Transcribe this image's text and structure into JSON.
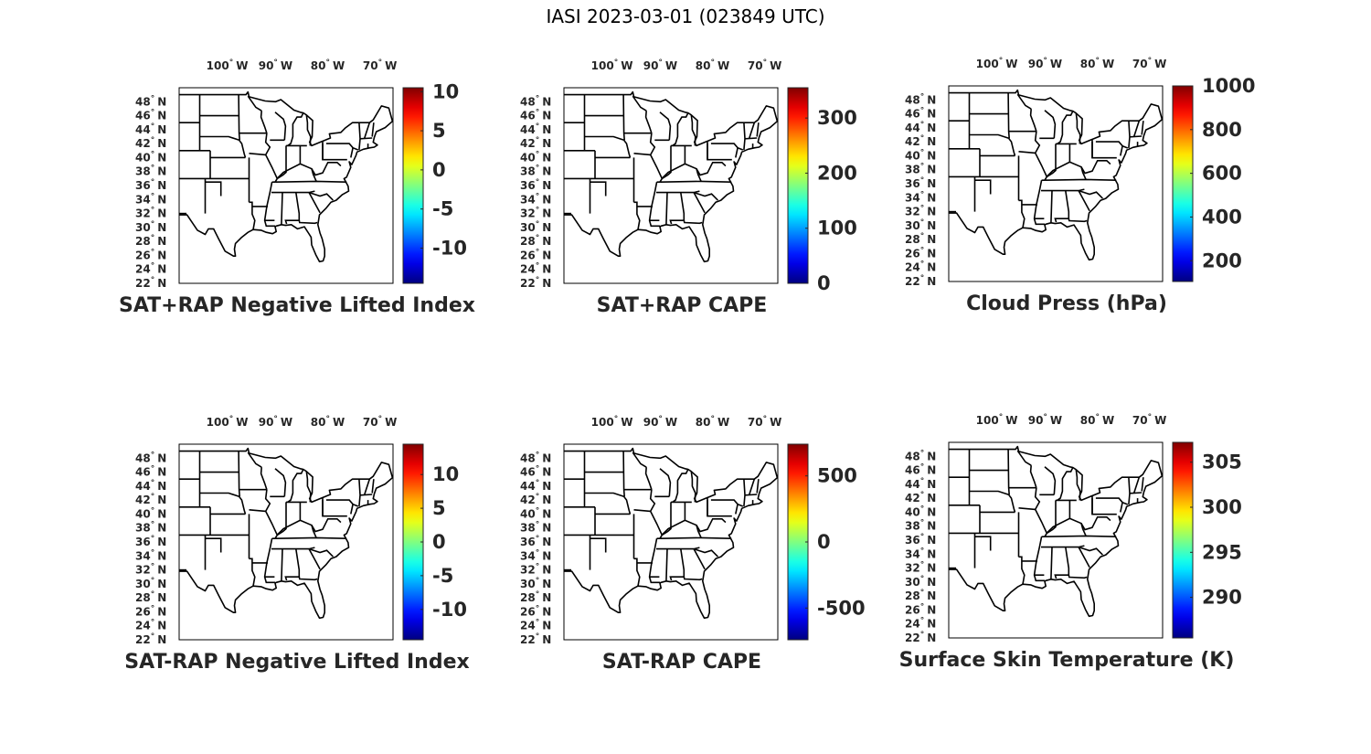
{
  "figure_title": "IASI 2023-03-01 (023849 UTC)",
  "map_axes": {
    "lon_ticks": [
      {
        "deg": 100,
        "hem": "W"
      },
      {
        "deg": 90,
        "hem": "W"
      },
      {
        "deg": 80,
        "hem": "W"
      },
      {
        "deg": 70,
        "hem": "W"
      }
    ],
    "lat_ticks": [
      {
        "deg": 48,
        "hem": "N"
      },
      {
        "deg": 46,
        "hem": "N"
      },
      {
        "deg": 44,
        "hem": "N"
      },
      {
        "deg": 42,
        "hem": "N"
      },
      {
        "deg": 40,
        "hem": "N"
      },
      {
        "deg": 38,
        "hem": "N"
      },
      {
        "deg": 36,
        "hem": "N"
      },
      {
        "deg": 34,
        "hem": "N"
      },
      {
        "deg": 32,
        "hem": "N"
      },
      {
        "deg": 30,
        "hem": "N"
      },
      {
        "deg": 28,
        "hem": "N"
      },
      {
        "deg": 26,
        "hem": "N"
      },
      {
        "deg": 24,
        "hem": "N"
      },
      {
        "deg": 22,
        "hem": "N"
      }
    ],
    "lon_range": [
      -108,
      -67
    ],
    "lat_range": [
      22,
      50
    ]
  },
  "colormap": "jet",
  "panels": [
    {
      "title": "SAT+RAP Negative Lifted Index",
      "colorbar": {
        "min": -14.5,
        "max": 10.5,
        "ticks": [
          10,
          5,
          0,
          -5,
          -10
        ]
      }
    },
    {
      "title": "SAT+RAP CAPE",
      "colorbar": {
        "min": 0,
        "max": 355,
        "ticks": [
          300,
          200,
          100,
          0
        ]
      }
    },
    {
      "title": "Cloud Press (hPa)",
      "colorbar": {
        "min": 105,
        "max": 1000,
        "ticks": [
          1000,
          800,
          600,
          400,
          200
        ]
      }
    },
    {
      "title": "SAT-RAP Negative Lifted Index",
      "colorbar": {
        "min": -14.5,
        "max": 14.5,
        "ticks": [
          10,
          5,
          0,
          -5,
          -10
        ]
      }
    },
    {
      "title": "SAT-RAP CAPE",
      "colorbar": {
        "min": -740,
        "max": 740,
        "ticks": [
          500,
          0,
          -500
        ]
      }
    },
    {
      "title": "Surface Skin Temperature (K)",
      "colorbar": {
        "min": 285.5,
        "max": 307.2,
        "ticks": [
          305,
          300,
          295,
          290
        ]
      }
    }
  ]
}
